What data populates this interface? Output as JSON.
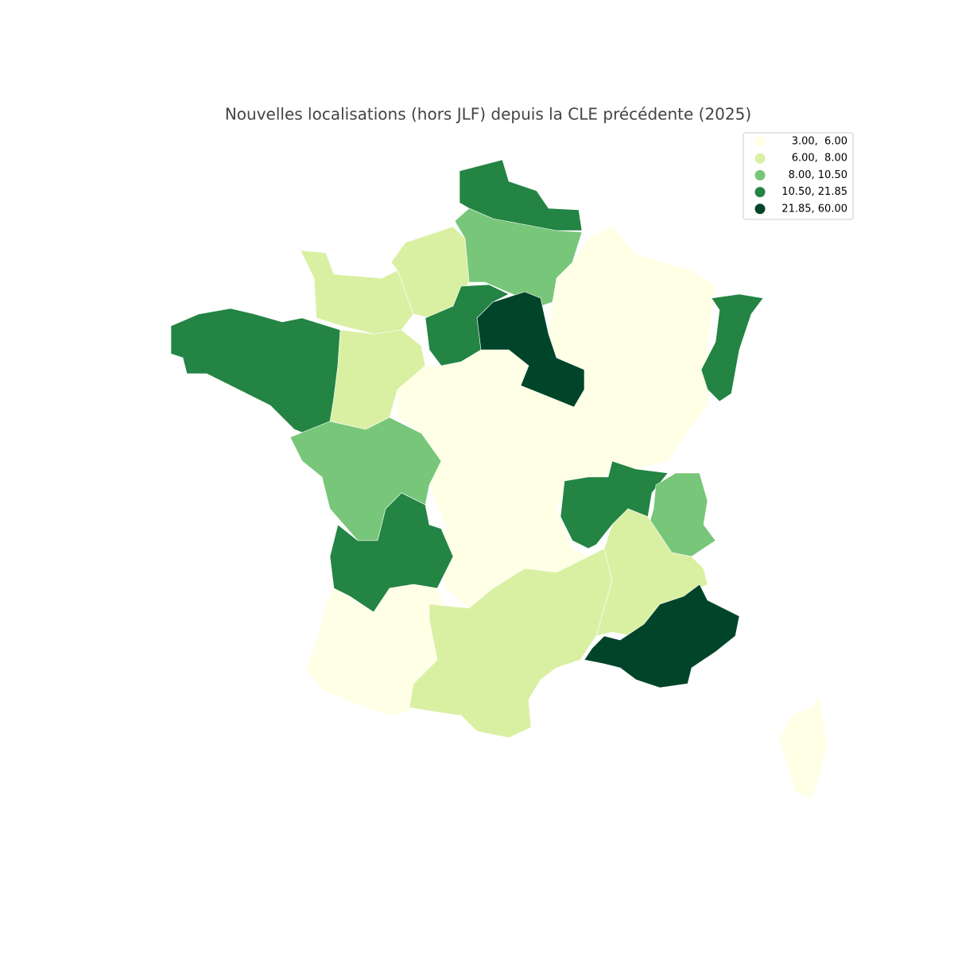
{
  "chart_data": {
    "type": "choropleth",
    "title": "Nouvelles localisations (hors JLF) depuis la CLE précédente (2025)",
    "legend": [
      {
        "label": "3.00,  6.00",
        "color": "#ffffe5"
      },
      {
        "label": "6.00,  8.00",
        "color": "#d9f0a3"
      },
      {
        "label": "8.00, 10.50",
        "color": "#78c679"
      },
      {
        "label": "10.50, 21.85",
        "color": "#238443"
      },
      {
        "label": "21.85, 60.00",
        "color": "#004529"
      }
    ]
  }
}
